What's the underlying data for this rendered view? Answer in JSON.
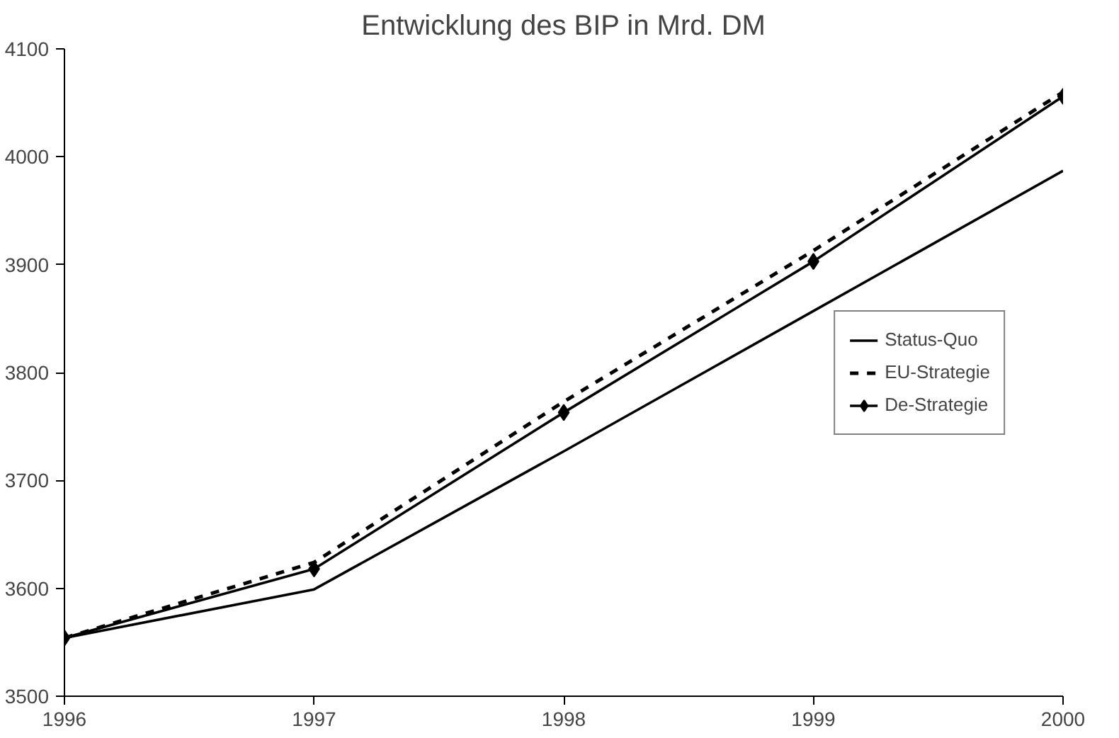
{
  "chart_data": {
    "type": "line",
    "title": "Entwicklung des BIP in Mrd. DM",
    "x": [
      1996,
      1997,
      1998,
      1999,
      2000
    ],
    "xlim": [
      1996,
      2000
    ],
    "xticks": [
      1996,
      1997,
      1998,
      1999,
      2000
    ],
    "ylim": [
      3500,
      4100
    ],
    "yticks": [
      3500,
      3600,
      3700,
      3800,
      3900,
      4000,
      4100
    ],
    "grid": false,
    "legend": "right",
    "series": [
      {
        "name": "Status-Quo",
        "color": "#000000",
        "values": [
          3554,
          3599,
          3727,
          3857,
          3987
        ],
        "line_style": "solid",
        "marker": "none"
      },
      {
        "name": "EU-Strategie",
        "color": "#000000",
        "values": [
          3554,
          3624,
          3773,
          3913,
          4060
        ],
        "line_style": "dashed",
        "marker": "none"
      },
      {
        "name": "De-Strategie",
        "color": "#000000",
        "values": [
          3554,
          3618,
          3763,
          3903,
          4056
        ],
        "line_style": "solid",
        "marker": "diamond"
      }
    ]
  }
}
